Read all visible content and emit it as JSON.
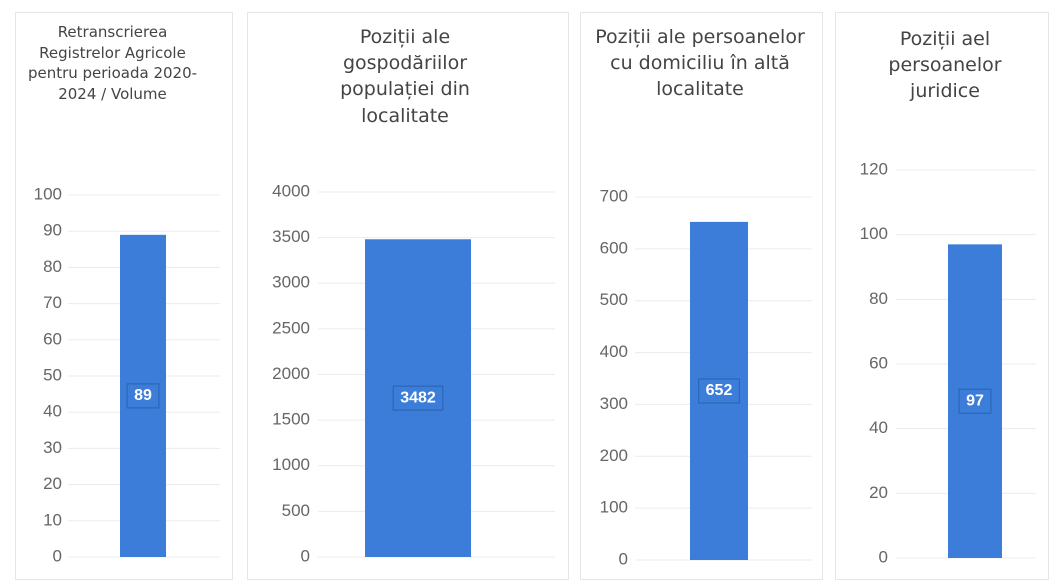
{
  "chart_data": [
    {
      "type": "bar",
      "title": "Retranscrierea Registrelor Agricole pentru perioada 2020-2024 / Volume",
      "values": [
        89
      ],
      "color": "#3b7dd8",
      "ylim": [
        0,
        100
      ],
      "yticks": [
        0,
        10,
        20,
        30,
        40,
        50,
        60,
        70,
        80,
        90,
        100
      ],
      "grid": true
    },
    {
      "type": "bar",
      "title": "Poziții ale gospodăriilor populației din localitate",
      "values": [
        3482
      ],
      "color": "#3b7dd8",
      "ylim": [
        0,
        4000
      ],
      "yticks": [
        0,
        500,
        1000,
        1500,
        2000,
        2500,
        3000,
        3500,
        4000
      ],
      "grid": true
    },
    {
      "type": "bar",
      "title": "Poziții ale persoanelor cu domiciliu în altă localitate",
      "values": [
        652
      ],
      "color": "#3b7dd8",
      "ylim": [
        0,
        700
      ],
      "yticks": [
        0,
        100,
        200,
        300,
        400,
        500,
        600,
        700
      ],
      "grid": true
    },
    {
      "type": "bar",
      "title": "Poziții ael persoanelor juridice",
      "values": [
        97
      ],
      "color": "#3b7dd8",
      "ylim": [
        0,
        120
      ],
      "yticks": [
        0,
        20,
        40,
        60,
        80,
        100,
        120
      ],
      "grid": true
    }
  ]
}
